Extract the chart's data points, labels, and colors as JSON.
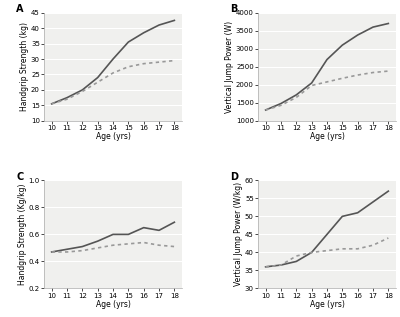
{
  "ages": [
    10,
    11,
    12,
    13,
    14,
    15,
    16,
    17,
    18
  ],
  "panel_A": {
    "label": "A",
    "ylabel": "Handgrip Strength (kg)",
    "xlabel": "Age (yrs)",
    "ylim": [
      10,
      45
    ],
    "yticks": [
      10,
      15,
      20,
      25,
      30,
      35,
      40,
      45
    ],
    "male": [
      15.5,
      17.5,
      20.0,
      24.0,
      30.0,
      35.5,
      38.5,
      41.0,
      42.5
    ],
    "female": [
      15.5,
      17.0,
      19.5,
      22.5,
      25.5,
      27.5,
      28.5,
      29.0,
      29.5
    ]
  },
  "panel_B": {
    "label": "B",
    "ylabel": "Vertical Jump Power (W)",
    "xlabel": "Age (yrs)",
    "ylim": [
      1000,
      4000
    ],
    "yticks": [
      1000,
      1500,
      2000,
      2500,
      3000,
      3500,
      4000
    ],
    "male": [
      1300,
      1480,
      1720,
      2050,
      2700,
      3100,
      3380,
      3600,
      3700
    ],
    "female": [
      1300,
      1430,
      1650,
      1980,
      2080,
      2180,
      2270,
      2340,
      2380
    ]
  },
  "panel_C": {
    "label": "C",
    "ylabel": "Handgrip Strength (Kg/kg)",
    "xlabel": "Age (yrs)",
    "ylim": [
      0.2,
      1.0
    ],
    "yticks": [
      0.2,
      0.4,
      0.6,
      0.8,
      1.0
    ],
    "male": [
      0.47,
      0.49,
      0.51,
      0.55,
      0.6,
      0.6,
      0.65,
      0.63,
      0.69
    ],
    "female": [
      0.47,
      0.47,
      0.48,
      0.5,
      0.52,
      0.53,
      0.54,
      0.52,
      0.51
    ]
  },
  "panel_D": {
    "label": "D",
    "ylabel": "Vertical Jump Power (W/kg)",
    "xlabel": "Age (yrs)",
    "ylim": [
      30,
      60
    ],
    "yticks": [
      30,
      35,
      40,
      45,
      50,
      55,
      60
    ],
    "male": [
      36,
      36.5,
      37.5,
      40,
      45,
      50,
      51,
      54,
      57
    ],
    "female": [
      36,
      36.5,
      39,
      40,
      40.5,
      41,
      41,
      42,
      44
    ]
  },
  "line_color_male": "#555555",
  "line_color_female": "#999999",
  "line_style_male": "solid",
  "line_style_female": "dotted",
  "line_width": 1.2,
  "bg_color": "#ffffff",
  "plot_bg_color": "#f0f0ee",
  "grid_color": "#ffffff",
  "label_fontsize": 5.5,
  "tick_fontsize": 5.0,
  "panel_label_fontsize": 7
}
